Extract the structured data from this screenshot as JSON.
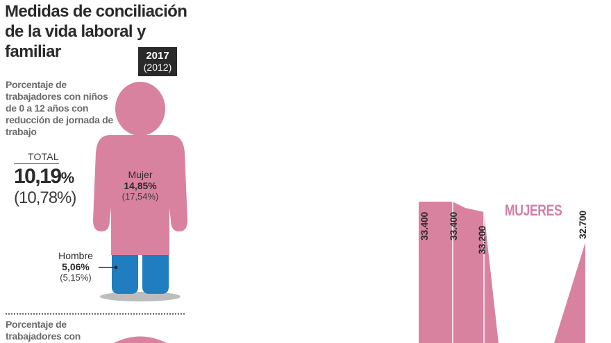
{
  "title": "Medidas de conciliación de la vida laboral y familiar",
  "year_badge": {
    "current": "2017",
    "previous": "(2012)"
  },
  "subheading_1": "Porcentaje de trabajadores con niños de 0 a 12 años con reducción de jornada de trabajo",
  "total": {
    "label": "TOTAL",
    "value": "10,19",
    "value_unit": "%",
    "previous": "(10,78%)"
  },
  "figure": {
    "women": {
      "label": "Mujer",
      "value": "14,85%",
      "previous": "(17,54%)"
    },
    "men": {
      "label": "Hombre",
      "value": "5,06%",
      "previous": "(5,15%)"
    }
  },
  "subheading_2": "Porcentaje de trabajadores con",
  "colors": {
    "women": "#d9829f",
    "men": "#1f7dc0",
    "dark": "#2a2a2a",
    "series_label": "#d27fa8"
  },
  "chart_data": [
    {
      "type": "bar",
      "categories": [
        "Mujer",
        "Hombre"
      ],
      "series": [
        {
          "name": "2017",
          "values": [
            14.85,
            5.06
          ]
        },
        {
          "name": "2012",
          "values": [
            17.54,
            5.15
          ]
        }
      ],
      "total": {
        "2017": 10.19,
        "2012": 10.78
      },
      "unit": "%"
    },
    {
      "type": "area",
      "series_name": "MUJERES",
      "values": [
        33400,
        33400,
        33200,
        32700
      ],
      "value_labels": [
        "33.400",
        "33.400",
        "33.200",
        "32.700"
      ]
    }
  ]
}
